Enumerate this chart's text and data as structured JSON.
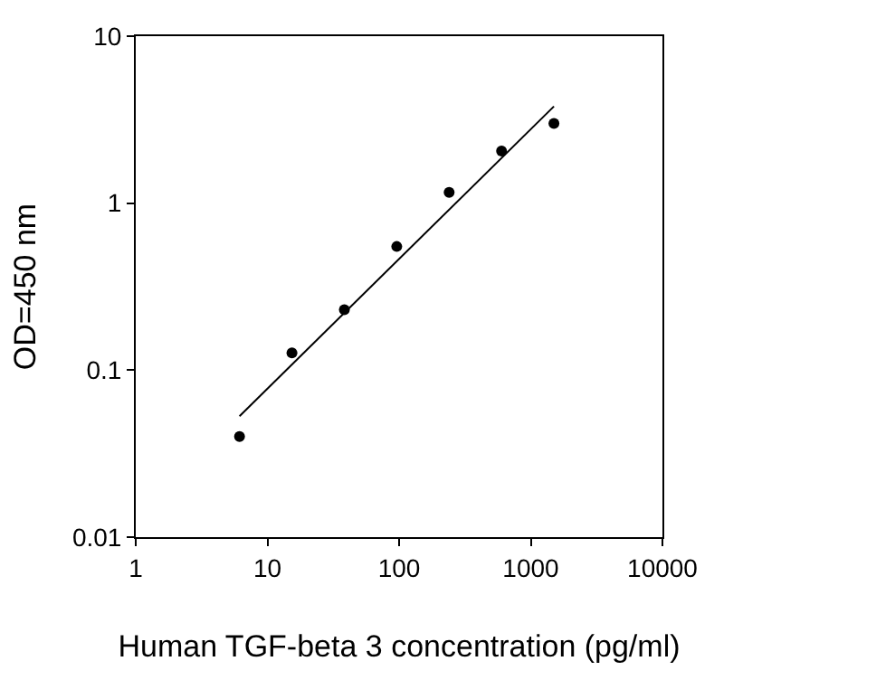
{
  "chart_data": {
    "type": "scatter",
    "xlabel": "Human TGF-beta 3 concentration (pg/ml)",
    "ylabel": "OD=450 nm",
    "log": "xy",
    "marker": "circle",
    "series": [
      {
        "color": "#000000",
        "x": [
          6.14,
          15.36,
          38.4,
          96,
          240,
          600,
          1500
        ],
        "values": [
          0.04,
          0.127,
          0.23,
          0.55,
          1.16,
          2.05,
          3.0
        ]
      },
      {
        "type": "line",
        "color": "#000000",
        "x": [
          6.14,
          1500
        ],
        "values": [
          0.053,
          3.8
        ],
        "marker": "none",
        "line_style": "solid"
      }
    ],
    "xlim": [
      1,
      10000
    ],
    "xticks": [
      1,
      10,
      100,
      1000,
      10000
    ],
    "ylim": [
      0.01,
      10
    ],
    "yticks": [
      0.01,
      0.1,
      1,
      10
    ]
  }
}
